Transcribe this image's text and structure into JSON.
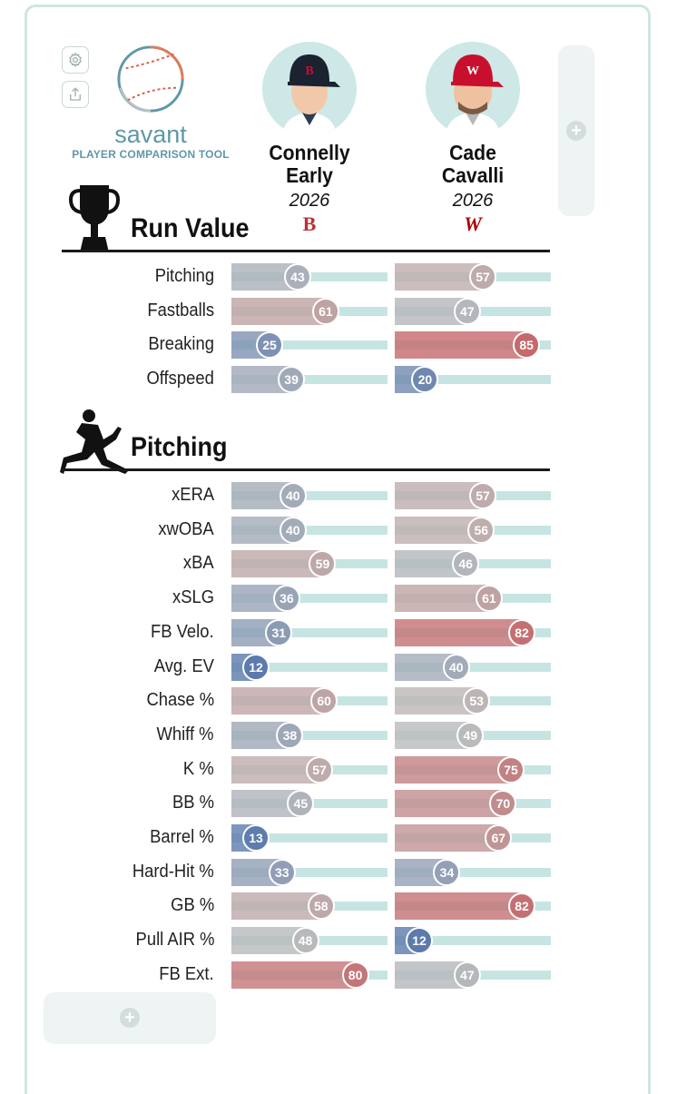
{
  "app": {
    "brand": "savant",
    "subtitle": "PLAYER COMPARISON TOOL",
    "accent_color": "#5f98a8",
    "icons": [
      "gear-icon",
      "share-icon",
      "baseball-logo-icon",
      "plus-icon",
      "trophy-icon",
      "pitcher-icon"
    ]
  },
  "players": [
    {
      "first": "Connelly",
      "last": "Early",
      "year": "2026",
      "team_logo_text": "B",
      "team_color": "#bd3039",
      "headshot": "player-headshot-red-sox-cap"
    },
    {
      "first": "Cade",
      "last": "Cavalli",
      "year": "2026",
      "team_logo_text": "W",
      "team_color": "#ab0003",
      "headshot": "player-headshot-nationals-cap"
    }
  ],
  "sections": [
    {
      "title": "Run Value",
      "icon": "trophy-icon",
      "rows": [
        {
          "label": "Pitching",
          "values": [
            43,
            57
          ]
        },
        {
          "label": "Fastballs",
          "values": [
            61,
            47
          ]
        },
        {
          "label": "Breaking",
          "values": [
            25,
            85
          ]
        },
        {
          "label": "Offspeed",
          "values": [
            39,
            20
          ]
        }
      ]
    },
    {
      "title": "Pitching",
      "icon": "pitcher-icon",
      "rows": [
        {
          "label": "xERA",
          "values": [
            40,
            57
          ]
        },
        {
          "label": "xwOBA",
          "values": [
            40,
            56
          ]
        },
        {
          "label": "xBA",
          "values": [
            59,
            46
          ]
        },
        {
          "label": "xSLG",
          "values": [
            36,
            61
          ]
        },
        {
          "label": "FB Velo.",
          "values": [
            31,
            82
          ]
        },
        {
          "label": "Avg. EV",
          "values": [
            12,
            40
          ]
        },
        {
          "label": "Chase %",
          "values": [
            60,
            53
          ]
        },
        {
          "label": "Whiff %",
          "values": [
            38,
            49
          ]
        },
        {
          "label": "K %",
          "values": [
            57,
            75
          ]
        },
        {
          "label": "BB %",
          "values": [
            45,
            70
          ]
        },
        {
          "label": "Barrel %",
          "values": [
            13,
            67
          ]
        },
        {
          "label": "Hard-Hit %",
          "values": [
            33,
            34
          ]
        },
        {
          "label": "GB %",
          "values": [
            58,
            82
          ]
        },
        {
          "label": "Pull AIR %",
          "values": [
            48,
            12
          ]
        },
        {
          "label": "FB Ext.",
          "values": [
            80,
            47
          ]
        }
      ]
    }
  ],
  "colors": {
    "low": "#3d65a8",
    "mid": "#bcbcbc",
    "high": "#c9454a",
    "track": "#c6e5e2"
  }
}
